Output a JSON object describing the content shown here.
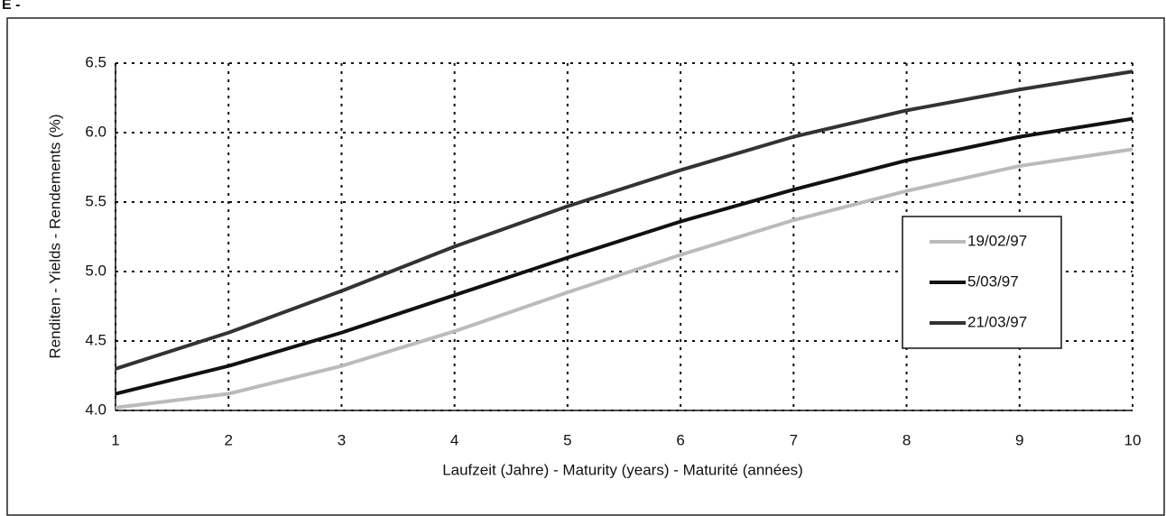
{
  "label": "E -",
  "chart_data": {
    "type": "line",
    "x_label": "Laufzeit (Jahre) - Maturity (years) - Maturité (années)",
    "y_label": "Renditen - Yields - Rendements (%)",
    "x": [
      1,
      2,
      3,
      4,
      5,
      6,
      7,
      8,
      9,
      10
    ],
    "series": [
      {
        "name": "19/02/97",
        "color": "#bbbbbb",
        "values": [
          4.02,
          4.12,
          4.32,
          4.57,
          4.85,
          5.12,
          5.37,
          5.58,
          5.76,
          5.88
        ]
      },
      {
        "name": "5/03/97",
        "color": "#111111",
        "values": [
          4.12,
          4.32,
          4.56,
          4.83,
          5.1,
          5.36,
          5.59,
          5.8,
          5.97,
          6.1
        ]
      },
      {
        "name": "21/03/97",
        "color": "#333333",
        "values": [
          4.3,
          4.56,
          4.86,
          5.18,
          5.47,
          5.73,
          5.97,
          6.16,
          6.31,
          6.44
        ]
      }
    ],
    "xlim": [
      1,
      10
    ],
    "xticks": [
      1,
      2,
      3,
      4,
      5,
      6,
      7,
      8,
      9,
      10
    ],
    "ylim": [
      4,
      6.5
    ],
    "yticks": [
      {
        "value": 4,
        "label": "4.0"
      },
      4.5,
      {
        "value": 5,
        "label": "5.0"
      },
      5.5,
      {
        "value": 6,
        "label": "6.0"
      },
      6.5
    ],
    "grid": true,
    "legend": "right"
  }
}
